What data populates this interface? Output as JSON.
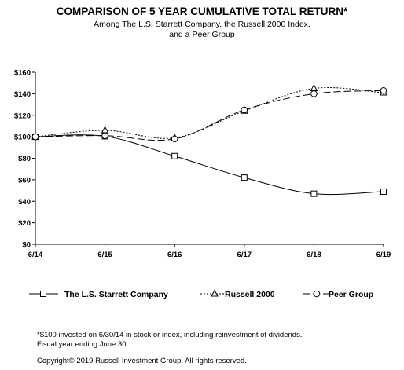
{
  "chart_data": {
    "type": "line",
    "title": "COMPARISON OF 5 YEAR CUMULATIVE TOTAL RETURN*",
    "subtitle": [
      "Among The L.S. Starrett Company, the Russell 2000 Index,",
      "and a Peer Group"
    ],
    "categories": [
      "6/14",
      "6/15",
      "6/16",
      "6/17",
      "6/18",
      "6/19"
    ],
    "ylim": [
      0,
      160
    ],
    "yticks": [
      0,
      20,
      40,
      60,
      80,
      100,
      120,
      140,
      160
    ],
    "ytick_labels": [
      "$0",
      "$20",
      "$40",
      "$60",
      "$80",
      "$100",
      "$120",
      "$140",
      "$160"
    ],
    "grid": false,
    "legend_placement": "bottom",
    "series": [
      {
        "name": "The L.S. Starrett Company",
        "values": [
          100,
          100.5,
          82,
          62,
          47,
          49
        ],
        "line_style": "solid",
        "marker": "square"
      },
      {
        "name": "Russell 2000",
        "values": [
          100,
          106,
          99,
          124,
          145,
          141
        ],
        "line_style": "dotted",
        "marker": "triangle"
      },
      {
        "name": "Peer Group",
        "values": [
          100,
          101,
          98,
          125,
          140,
          143
        ],
        "line_style": "dashed",
        "marker": "circle"
      }
    ],
    "footnotes": [
      "*$100 invested on 6/30/14 in stock or index, including reinvestment of dividends.",
      "Fiscal year ending June 30."
    ],
    "copyright": "Copyright© 2019 Russell Investment Group. All rights reserved."
  }
}
